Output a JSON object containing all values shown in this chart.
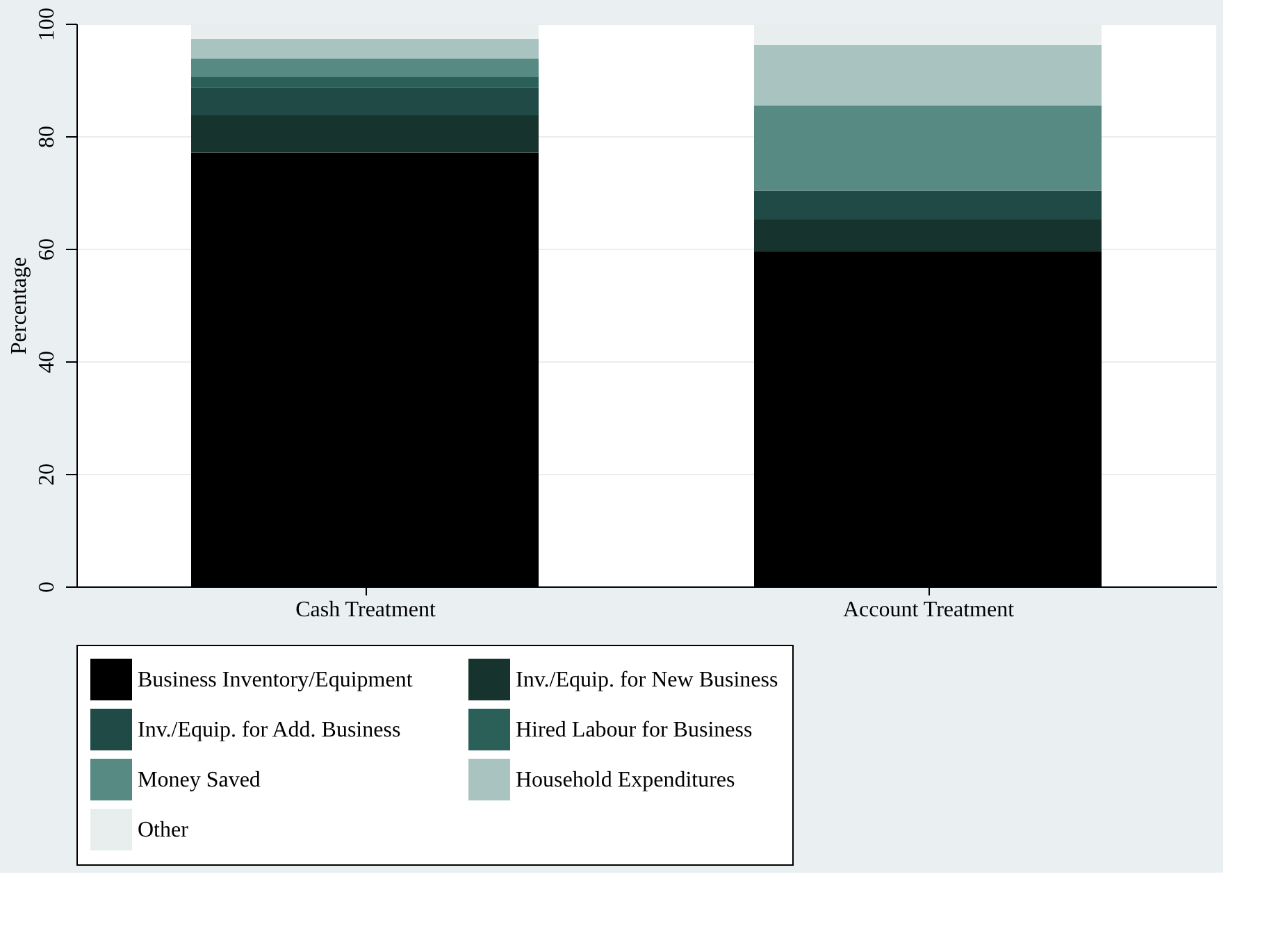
{
  "chart_data": {
    "type": "bar",
    "stacked": true,
    "ylabel": "Percentage",
    "categories": [
      "Cash Treatment",
      "Account Treatment"
    ],
    "series": [
      {
        "name": "Business Inventory/Equipment",
        "color": "#000000",
        "values": [
          77.1,
          59.6
        ]
      },
      {
        "name": "Inv./Equip. for New Business",
        "color": "#17332e",
        "values": [
          6.6,
          5.6
        ]
      },
      {
        "name": "Inv./Equip. for Add. Business",
        "color": "#1f4a45",
        "values": [
          5.0,
          5.1
        ]
      },
      {
        "name": "Hired Labour for Business",
        "color": "#2a6058",
        "values": [
          1.8,
          0
        ]
      },
      {
        "name": "Money Saved",
        "color": "#568a82",
        "values": [
          3.3,
          15.2
        ]
      },
      {
        "name": "Household Expenditures",
        "color": "#a9c4c0",
        "values": [
          3.5,
          10.7
        ]
      },
      {
        "name": "Other",
        "color": "#e8eeee",
        "values": [
          2.7,
          3.8
        ]
      }
    ],
    "ylim": [
      0,
      100
    ],
    "yticks": [
      0,
      20,
      40,
      60,
      80,
      100
    ],
    "grid": "y",
    "legend": "bottom"
  }
}
